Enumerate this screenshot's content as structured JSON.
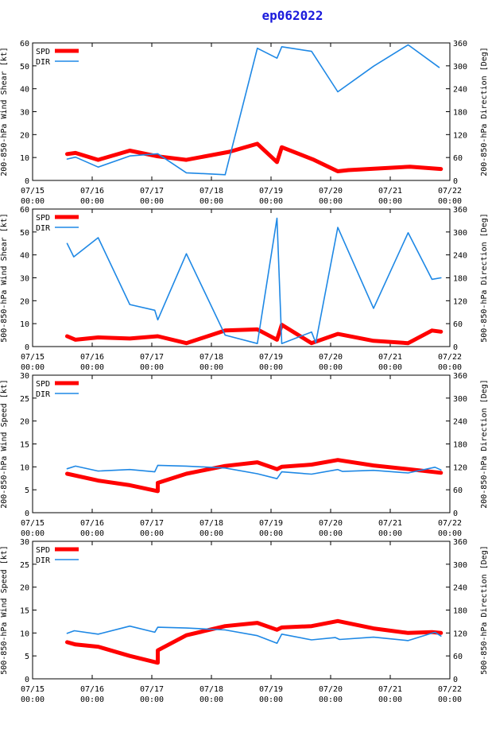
{
  "title": "ep062022",
  "colors": {
    "spd": "#ff0000",
    "dir": "#1e88e5",
    "title": "#1a1adc"
  },
  "x_ticks": [
    {
      "day": 0,
      "date": "07/15",
      "time": "00:00"
    },
    {
      "day": 1,
      "date": "07/16",
      "time": "00:00"
    },
    {
      "day": 2,
      "date": "07/17",
      "time": "00:00"
    },
    {
      "day": 3,
      "date": "07/18",
      "time": "00:00"
    },
    {
      "day": 4,
      "date": "07/19",
      "time": "00:00"
    },
    {
      "day": 5,
      "date": "07/20",
      "time": "00:00"
    },
    {
      "day": 6,
      "date": "07/21",
      "time": "00:00"
    },
    {
      "day": 7,
      "date": "07/22",
      "time": "00:00"
    }
  ],
  "chart_data": [
    {
      "type": "line",
      "ylabel": "200-850-hPa Wind Shear [kt]",
      "y2label": "200-850-hPa Direction [Deg]",
      "xlim": [
        0,
        7
      ],
      "ylim": [
        0,
        60
      ],
      "y2lim": [
        0,
        360
      ],
      "yticks": [
        0,
        10,
        20,
        30,
        40,
        50,
        60
      ],
      "y2ticks": [
        0,
        60,
        120,
        180,
        240,
        300,
        360
      ],
      "legend": [
        "SPD",
        "DIR"
      ],
      "series": [
        {
          "name": "SPD",
          "axis": "left",
          "x": [
            0.58,
            0.72,
            1.1,
            1.63,
            2.1,
            2.58,
            3.3,
            3.77,
            4.1,
            4.18,
            4.72,
            5.12,
            5.3,
            6.0,
            6.33,
            6.85
          ],
          "y": [
            11.5,
            12,
            9,
            13,
            10.5,
            9,
            12.5,
            16,
            8,
            14.5,
            9,
            4,
            4.5,
            5.5,
            6,
            5
          ]
        },
        {
          "name": "DIR",
          "axis": "left_dir",
          "x": [
            0.58,
            0.72,
            1.1,
            1.63,
            2.1,
            2.58,
            3.23,
            3.77,
            4.1,
            4.18,
            4.68,
            5.12,
            5.72,
            6.3,
            6.82
          ],
          "y": [
            56,
            61,
            35,
            64,
            70,
            20,
            15,
            346,
            320,
            350,
            338,
            232,
            299,
            355,
            296
          ]
        }
      ]
    },
    {
      "type": "line",
      "ylabel": "500-850-hPa Wind Shear [kt]",
      "y2label": "500-850-hPa Direction [Deg]",
      "xlim": [
        0,
        7
      ],
      "ylim": [
        0,
        60
      ],
      "y2lim": [
        0,
        360
      ],
      "yticks": [
        0,
        10,
        20,
        30,
        40,
        50,
        60
      ],
      "y2ticks": [
        0,
        60,
        120,
        180,
        240,
        300,
        360
      ],
      "legend": [
        "SPD",
        "DIR"
      ],
      "series": [
        {
          "name": "SPD",
          "axis": "left",
          "x": [
            0.58,
            0.72,
            1.1,
            1.63,
            2.1,
            2.58,
            3.23,
            3.77,
            4.1,
            4.18,
            4.68,
            5.12,
            5.72,
            6.3,
            6.7,
            6.85
          ],
          "y": [
            4.5,
            3,
            4,
            3.5,
            4.5,
            1.5,
            7,
            7.5,
            3,
            9.5,
            1.5,
            5.5,
            2.5,
            1.5,
            7,
            6.5
          ]
        },
        {
          "name": "DIR",
          "axis": "left_dir",
          "x": [
            0.58,
            0.69,
            1.1,
            1.63,
            2.05,
            2.1,
            2.58,
            3.23,
            3.77,
            4.1,
            4.18,
            4.68,
            4.75,
            5.12,
            5.72,
            6.3,
            6.7,
            6.85
          ],
          "y": [
            270,
            235,
            285,
            110,
            95,
            70,
            243,
            30,
            8,
            336,
            8,
            38,
            10,
            312,
            100,
            298,
            176,
            180
          ]
        }
      ]
    },
    {
      "type": "line",
      "ylabel": "200-850-hPa Wind Speed [kt]",
      "y2label": "200-850-hPa Direction [Deg]",
      "xlim": [
        0,
        7
      ],
      "ylim": [
        0,
        30
      ],
      "y2lim": [
        0,
        360
      ],
      "yticks": [
        0,
        5,
        10,
        15,
        20,
        25,
        30
      ],
      "y2ticks": [
        0,
        60,
        120,
        180,
        240,
        300,
        360
      ],
      "legend": [
        "SPD",
        "DIR"
      ],
      "series": [
        {
          "name": "SPD",
          "axis": "left",
          "x": [
            0.58,
            1.1,
            1.63,
            2.1,
            2.1,
            2.58,
            3.23,
            3.77,
            4.1,
            4.18,
            4.68,
            5.12,
            5.72,
            6.3,
            6.85
          ],
          "y": [
            8.5,
            7,
            6,
            4.7,
            6.5,
            8.5,
            10.2,
            11,
            9.5,
            10,
            10.5,
            11.5,
            10.3,
            9.5,
            8.7
          ]
        },
        {
          "name": "DIR",
          "axis": "left_dir",
          "x": [
            0.58,
            0.72,
            1.1,
            1.63,
            2.05,
            2.1,
            2.58,
            3.23,
            3.77,
            4.1,
            4.18,
            4.68,
            5.12,
            5.2,
            5.72,
            6.3,
            6.75,
            6.85
          ],
          "y": [
            115,
            122,
            109,
            113,
            107,
            124,
            122,
            117,
            102,
            89,
            107,
            101,
            113,
            108,
            111,
            104,
            119,
            112
          ]
        }
      ]
    },
    {
      "type": "line",
      "ylabel": "500-850-hPa Wind Speed [kt]",
      "y2label": "500-850-hPa Direction [Deg]",
      "xlim": [
        0,
        7
      ],
      "ylim": [
        0,
        30
      ],
      "y2lim": [
        0,
        360
      ],
      "yticks": [
        0,
        5,
        10,
        15,
        20,
        25,
        30
      ],
      "y2ticks": [
        0,
        60,
        120,
        180,
        240,
        300,
        360
      ],
      "legend": [
        "SPD",
        "DIR"
      ],
      "series": [
        {
          "name": "SPD",
          "axis": "left",
          "x": [
            0.58,
            0.72,
            1.1,
            1.63,
            2.1,
            2.1,
            2.58,
            3.23,
            3.77,
            4.1,
            4.18,
            4.68,
            5.12,
            5.72,
            6.3,
            6.7,
            6.85
          ],
          "y": [
            8,
            7.5,
            7,
            5,
            3.5,
            6.2,
            9.5,
            11.5,
            12.2,
            10.7,
            11.2,
            11.5,
            12.6,
            11,
            10,
            10.2,
            10
          ]
        },
        {
          "name": "DIR",
          "axis": "left_dir",
          "x": [
            0.58,
            0.7,
            1.1,
            1.63,
            2.05,
            2.1,
            2.58,
            3.23,
            3.77,
            4.1,
            4.18,
            4.68,
            5.08,
            5.15,
            5.72,
            6.3,
            6.75,
            6.85
          ],
          "y": [
            119,
            126,
            117,
            138,
            122,
            135,
            133,
            128,
            113,
            93,
            117,
            102,
            108,
            103,
            109,
            100,
            122,
            112
          ]
        }
      ]
    }
  ]
}
